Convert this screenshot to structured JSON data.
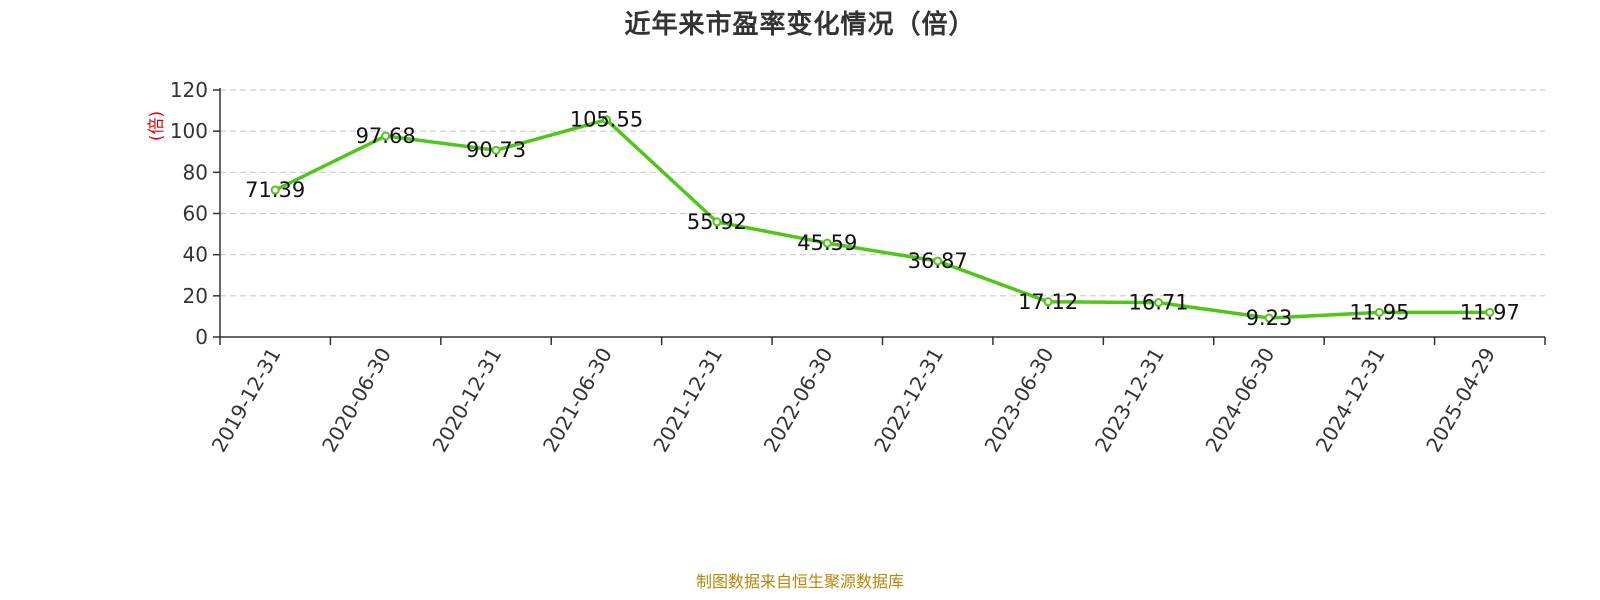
{
  "chart_data": {
    "type": "line",
    "title": "近年来市盈率变化情况（倍）",
    "ylabel": "(倍)",
    "xlabel": "",
    "categories": [
      "2019-12-31",
      "2020-06-30",
      "2020-12-31",
      "2021-06-30",
      "2021-12-31",
      "2022-06-30",
      "2022-12-31",
      "2023-06-30",
      "2023-12-31",
      "2024-06-30",
      "2024-12-31",
      "2025-04-29"
    ],
    "series": [
      {
        "values": [
          71.39,
          97.68,
          90.73,
          105.55,
          55.92,
          45.59,
          36.87,
          17.12,
          16.71,
          9.23,
          11.95,
          11.97
        ]
      }
    ],
    "data_labels": [
      "71.39",
      "97.68",
      "90.73",
      "105.55",
      "55.92",
      "45.59",
      "36.87",
      "17.12",
      "16.71",
      "9.23",
      "11.95",
      "11.97"
    ],
    "ylim": [
      0,
      120
    ],
    "yticks": [
      0,
      20,
      40,
      60,
      80,
      100,
      120
    ],
    "ytick_labels": [
      "0",
      "20",
      "40",
      "60",
      "80",
      "100",
      "120"
    ],
    "grid": true,
    "line_color": "#52c41a",
    "legend": "none"
  },
  "source_note": "制图数据来自恒生聚源数据库"
}
